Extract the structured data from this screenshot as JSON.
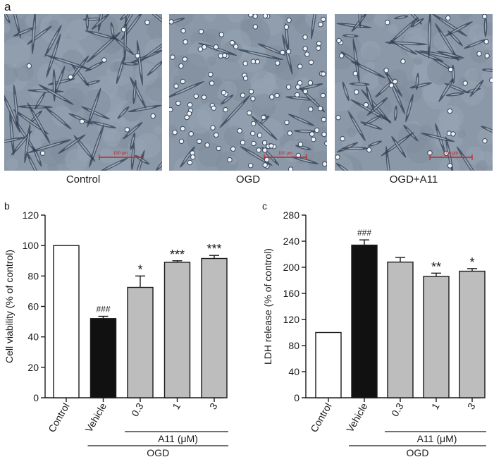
{
  "panel_a": {
    "letter": "a",
    "images": [
      {
        "caption": "Control",
        "scale_bar_label": "100 μm"
      },
      {
        "caption": "OGD",
        "scale_bar_label": "100 μm"
      },
      {
        "caption": "OGD+A11",
        "scale_bar_label": "100 μm"
      }
    ]
  },
  "chart_data": [
    {
      "panel_letter": "b",
      "type": "bar",
      "ylabel": "Cell viability (% of control)",
      "ylim": [
        0,
        120
      ],
      "yticks": [
        0,
        20,
        40,
        60,
        80,
        100,
        120
      ],
      "categories": [
        "Control",
        "Vehicle",
        "0.3",
        "1",
        "3"
      ],
      "values": [
        100,
        52,
        72.5,
        89,
        91.5
      ],
      "errors": [
        0,
        1.5,
        7.5,
        1,
        2
      ],
      "fills": [
        "#ffffff",
        "#111111",
        "#bdbdbd",
        "#bdbdbd",
        "#bdbdbd"
      ],
      "annotations": [
        "",
        "###",
        "*",
        "***",
        "***"
      ],
      "group_labels": {
        "inner": "A11 (μM)",
        "outer": "OGD"
      }
    },
    {
      "panel_letter": "c",
      "type": "bar",
      "ylabel": "LDH release (% of control)",
      "ylim": [
        0,
        280
      ],
      "yticks": [
        0,
        40,
        80,
        120,
        160,
        200,
        240,
        280
      ],
      "categories": [
        "Control",
        "Vehicle",
        "0.3",
        "1",
        "3"
      ],
      "values": [
        100,
        234,
        208,
        186,
        194
      ],
      "errors": [
        0,
        8,
        7,
        5,
        4
      ],
      "fills": [
        "#ffffff",
        "#111111",
        "#bdbdbd",
        "#bdbdbd",
        "#bdbdbd"
      ],
      "annotations": [
        "",
        "###",
        "",
        "**",
        "*"
      ],
      "group_labels": {
        "inner": "A11 (μM)",
        "outer": "OGD"
      }
    }
  ]
}
